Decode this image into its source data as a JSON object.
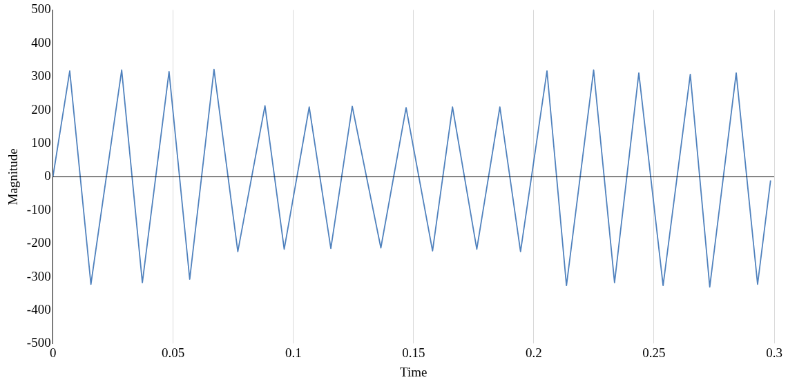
{
  "chart_data": {
    "type": "line",
    "xlabel": "Time",
    "ylabel": "Magnitude",
    "x": [
      0,
      0.007,
      0.0158,
      0.0286,
      0.0372,
      0.0483,
      0.0569,
      0.067,
      0.0769,
      0.0882,
      0.0962,
      0.1066,
      0.1156,
      0.1245,
      0.1364,
      0.1469,
      0.1579,
      0.1662,
      0.1763,
      0.1859,
      0.1945,
      0.2055,
      0.2136,
      0.2249,
      0.2336,
      0.2437,
      0.2538,
      0.2651,
      0.2732,
      0.2842,
      0.2931,
      0.2985
    ],
    "series": [
      {
        "color": "#4f81bd",
        "values": [
          0,
          317,
          -322,
          320,
          -317,
          315,
          -307,
          322,
          -224,
          213,
          -217,
          209,
          -215,
          211,
          -213,
          207,
          -222,
          209,
          -217,
          209,
          -224,
          317,
          -326,
          320,
          -317,
          311,
          -326,
          307,
          -330,
          311,
          -322,
          -11
        ]
      }
    ],
    "xlim": [
      0,
      0.3
    ],
    "xticks": [
      0,
      0.05,
      0.1,
      0.15,
      0.2,
      0.25,
      0.3
    ],
    "ylim": [
      -500,
      500
    ],
    "yticks": [
      -500,
      -400,
      -300,
      -200,
      -100,
      0,
      100,
      200,
      300,
      400,
      500
    ],
    "grid": "x",
    "legend": false,
    "marker": "none",
    "line_style": "solid"
  }
}
